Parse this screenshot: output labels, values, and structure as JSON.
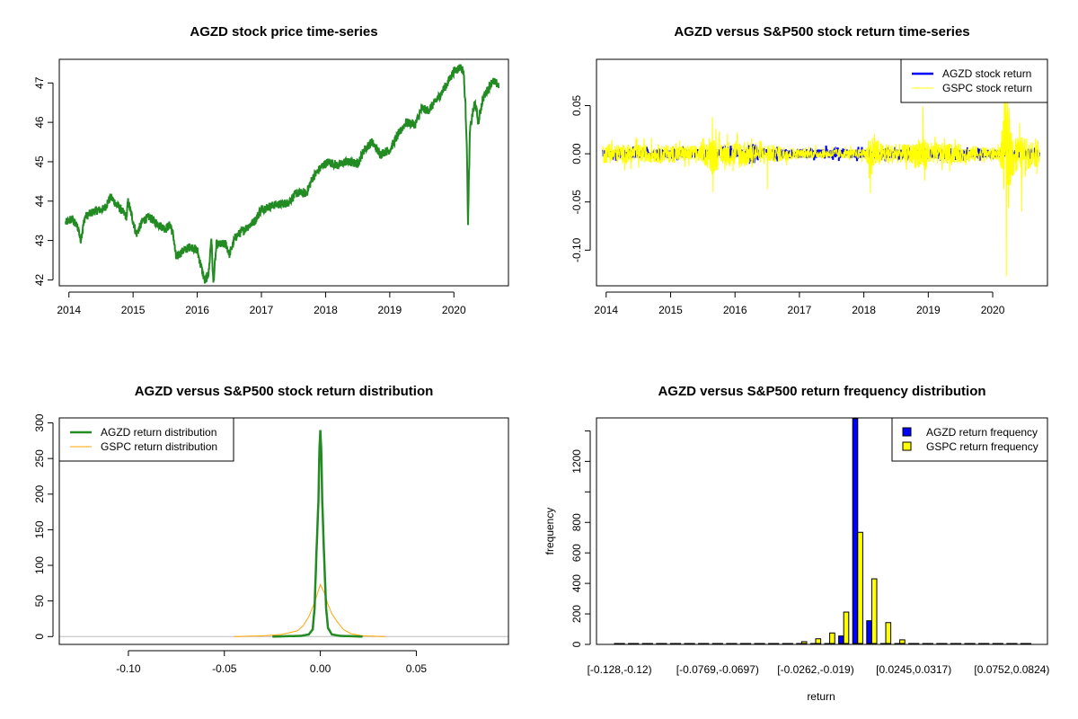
{
  "chart_data": [
    {
      "type": "line",
      "title": "AGZD stock price time-series",
      "xlabel": "",
      "ylabel": "",
      "xlim": [
        2013.85,
        2020.85
      ],
      "ylim": [
        41.85,
        47.6
      ],
      "x_ticks": [
        "2014",
        "2015",
        "2016",
        "2017",
        "2018",
        "2019",
        "2020"
      ],
      "y_ticks": [
        "42",
        "43",
        "44",
        "45",
        "46",
        "47"
      ],
      "series": [
        {
          "name": "AGZD price",
          "color": "#228B22",
          "points": [
            [
              2013.95,
              43.45
            ],
            [
              2014.05,
              43.55
            ],
            [
              2014.15,
              43.3
            ],
            [
              2014.18,
              43.0
            ],
            [
              2014.25,
              43.6
            ],
            [
              2014.4,
              43.75
            ],
            [
              2014.55,
              43.8
            ],
            [
              2014.65,
              44.1
            ],
            [
              2014.8,
              43.8
            ],
            [
              2014.9,
              43.6
            ],
            [
              2014.92,
              44.0
            ],
            [
              2015.0,
              43.5
            ],
            [
              2015.05,
              43.15
            ],
            [
              2015.15,
              43.5
            ],
            [
              2015.25,
              43.6
            ],
            [
              2015.4,
              43.4
            ],
            [
              2015.5,
              43.3
            ],
            [
              2015.58,
              43.4
            ],
            [
              2015.63,
              43.1
            ],
            [
              2015.67,
              42.55
            ],
            [
              2015.75,
              42.7
            ],
            [
              2015.9,
              42.85
            ],
            [
              2016.0,
              42.75
            ],
            [
              2016.05,
              42.4
            ],
            [
              2016.12,
              41.95
            ],
            [
              2016.18,
              42.2
            ],
            [
              2016.22,
              43.1
            ],
            [
              2016.25,
              41.9
            ],
            [
              2016.3,
              42.9
            ],
            [
              2016.45,
              42.9
            ],
            [
              2016.5,
              42.65
            ],
            [
              2016.6,
              43.1
            ],
            [
              2016.75,
              43.3
            ],
            [
              2016.9,
              43.5
            ],
            [
              2017.0,
              43.8
            ],
            [
              2017.2,
              43.9
            ],
            [
              2017.4,
              43.95
            ],
            [
              2017.55,
              44.2
            ],
            [
              2017.7,
              44.2
            ],
            [
              2017.8,
              44.6
            ],
            [
              2017.95,
              44.9
            ],
            [
              2018.05,
              45.0
            ],
            [
              2018.2,
              44.9
            ],
            [
              2018.3,
              45.0
            ],
            [
              2018.5,
              44.95
            ],
            [
              2018.6,
              45.3
            ],
            [
              2018.72,
              45.5
            ],
            [
              2018.85,
              45.2
            ],
            [
              2019.0,
              45.3
            ],
            [
              2019.1,
              45.6
            ],
            [
              2019.25,
              46.0
            ],
            [
              2019.4,
              45.95
            ],
            [
              2019.5,
              46.35
            ],
            [
              2019.6,
              46.3
            ],
            [
              2019.75,
              46.6
            ],
            [
              2019.9,
              47.0
            ],
            [
              2020.0,
              47.3
            ],
            [
              2020.1,
              47.4
            ],
            [
              2020.15,
              47.3
            ],
            [
              2020.18,
              46.4
            ],
            [
              2020.2,
              45.5
            ],
            [
              2020.22,
              43.45
            ],
            [
              2020.25,
              45.8
            ],
            [
              2020.3,
              46.3
            ],
            [
              2020.33,
              46.5
            ],
            [
              2020.38,
              46.0
            ],
            [
              2020.45,
              46.6
            ],
            [
              2020.55,
              46.9
            ],
            [
              2020.6,
              47.05
            ],
            [
              2020.7,
              46.95
            ]
          ]
        }
      ]
    },
    {
      "type": "line",
      "title": "AGZD versus S&P500 stock return time-series",
      "xlabel": "",
      "ylabel": "",
      "xlim": [
        2013.85,
        2020.85
      ],
      "ylim": [
        -0.137,
        0.098
      ],
      "x_ticks": [
        "2014",
        "2015",
        "2016",
        "2017",
        "2018",
        "2019",
        "2020"
      ],
      "y_ticks": [
        "-0.10",
        "-0.05",
        "0.00",
        "0.05"
      ],
      "legend": {
        "position": "top-right",
        "entries": [
          "AGZD stock return",
          "GSPC stock return"
        ]
      },
      "series": [
        {
          "name": "AGZD stock return",
          "color": "#0000FF",
          "volatility": [
            [
              2013.95,
              0.004
            ],
            [
              2016.2,
              0.005
            ],
            [
              2016.3,
              0.012
            ],
            [
              2016.4,
              0.005
            ],
            [
              2020.2,
              0.004
            ],
            [
              2020.72,
              0.004
            ]
          ]
        },
        {
          "name": "GSPC stock return",
          "color": "#FFFF00",
          "volatility": [
            [
              2013.95,
              0.01
            ],
            [
              2015.5,
              0.009
            ],
            [
              2015.65,
              0.022
            ],
            [
              2015.8,
              0.012
            ],
            [
              2016.1,
              0.016
            ],
            [
              2016.3,
              0.01
            ],
            [
              2016.8,
              0.008
            ],
            [
              2017.0,
              0.005
            ],
            [
              2018.0,
              0.005
            ],
            [
              2018.1,
              0.022
            ],
            [
              2018.3,
              0.01
            ],
            [
              2018.75,
              0.01
            ],
            [
              2018.85,
              0.022
            ],
            [
              2019.05,
              0.012
            ],
            [
              2019.5,
              0.01
            ],
            [
              2020.1,
              0.006
            ],
            [
              2020.2,
              0.05
            ],
            [
              2020.35,
              0.02
            ],
            [
              2020.72,
              0.013
            ]
          ],
          "extremes": [
            [
              2015.65,
              0.038
            ],
            [
              2015.66,
              -0.04
            ],
            [
              2016.5,
              -0.037
            ],
            [
              2018.1,
              -0.041
            ],
            [
              2018.92,
              0.049
            ],
            [
              2020.18,
              0.09
            ],
            [
              2020.21,
              -0.127
            ],
            [
              2020.23,
              0.09
            ],
            [
              2020.45,
              -0.06
            ]
          ]
        }
      ]
    },
    {
      "type": "line",
      "title": "AGZD versus S&P500 stock return distribution",
      "xlabel": "",
      "ylabel": "",
      "xlim": [
        -0.136,
        0.098
      ],
      "ylim": [
        -11,
        307
      ],
      "x_ticks": [
        "-0.10",
        "-0.05",
        "0.00",
        "0.05"
      ],
      "y_ticks": [
        "0",
        "50",
        "100",
        "150",
        "200",
        "250",
        "300"
      ],
      "legend": {
        "position": "top-left",
        "entries": [
          "AGZD return distribution",
          "GSPC return distribution"
        ]
      },
      "series": [
        {
          "name": "AGZD return distribution",
          "color": "#228B22",
          "points": [
            [
              -0.025,
              0
            ],
            [
              -0.01,
              1
            ],
            [
              -0.006,
              3
            ],
            [
              -0.004,
              10
            ],
            [
              -0.003,
              40
            ],
            [
              -0.002,
              120
            ],
            [
              -0.001,
              190
            ],
            [
              -0.0005,
              260
            ],
            [
              0,
              290
            ],
            [
              0.0005,
              260
            ],
            [
              0.001,
              190
            ],
            [
              0.002,
              110
            ],
            [
              0.003,
              40
            ],
            [
              0.004,
              12
            ],
            [
              0.006,
              3
            ],
            [
              0.01,
              1
            ],
            [
              0.022,
              0
            ]
          ]
        },
        {
          "name": "GSPC return distribution",
          "color": "#FFA500",
          "points": [
            [
              -0.045,
              0
            ],
            [
              -0.03,
              1
            ],
            [
              -0.02,
              3
            ],
            [
              -0.012,
              8
            ],
            [
              -0.009,
              15
            ],
            [
              -0.006,
              28
            ],
            [
              -0.003,
              48
            ],
            [
              0,
              73
            ],
            [
              0.002,
              62
            ],
            [
              0.004,
              45
            ],
            [
              0.006,
              32
            ],
            [
              0.009,
              20
            ],
            [
              0.012,
              10
            ],
            [
              0.016,
              4
            ],
            [
              0.022,
              1
            ],
            [
              0.034,
              0
            ]
          ]
        }
      ]
    },
    {
      "type": "bar",
      "title": "AGZD versus S&P500 return frequency distribution",
      "xlabel": "return",
      "ylabel": "frequency",
      "ylim": [
        0,
        1485
      ],
      "y_ticks": [
        "0",
        "200",
        "400",
        "600",
        "800",
        "1200"
      ],
      "bin_start": -0.128,
      "bin_width": 0.00724,
      "x_tick_labels": [
        [
          0,
          "[-0.128,-0.12)"
        ],
        [
          7,
          "[-0.0769,-0.0697)"
        ],
        [
          14,
          "[-0.0262,-0.019)"
        ],
        [
          21,
          "[0.0245,0.0317)"
        ],
        [
          28,
          "[0.0752,0.0824)"
        ]
      ],
      "legend": {
        "position": "top-right",
        "entries": [
          "AGZD return frequency",
          "GSPC return frequency"
        ]
      },
      "series": [
        {
          "name": "AGZD return frequency",
          "color": "#0000FF",
          "values": [
            0,
            0,
            0,
            0,
            0,
            0,
            0,
            0,
            0,
            0,
            0,
            3,
            3,
            1,
            5,
            5,
            55,
            1480,
            155,
            5,
            1,
            3,
            3,
            3,
            2,
            3,
            0,
            0,
            0,
            0
          ]
        },
        {
          "name": "GSPC return frequency",
          "color": "#FFFF00",
          "values": [
            0,
            0,
            0,
            0,
            0,
            0,
            0,
            0,
            0,
            0,
            0,
            3,
            3,
            18,
            37,
            75,
            212,
            735,
            430,
            143,
            30,
            3,
            3,
            3,
            3,
            3,
            0,
            0,
            0,
            0
          ]
        }
      ]
    }
  ]
}
